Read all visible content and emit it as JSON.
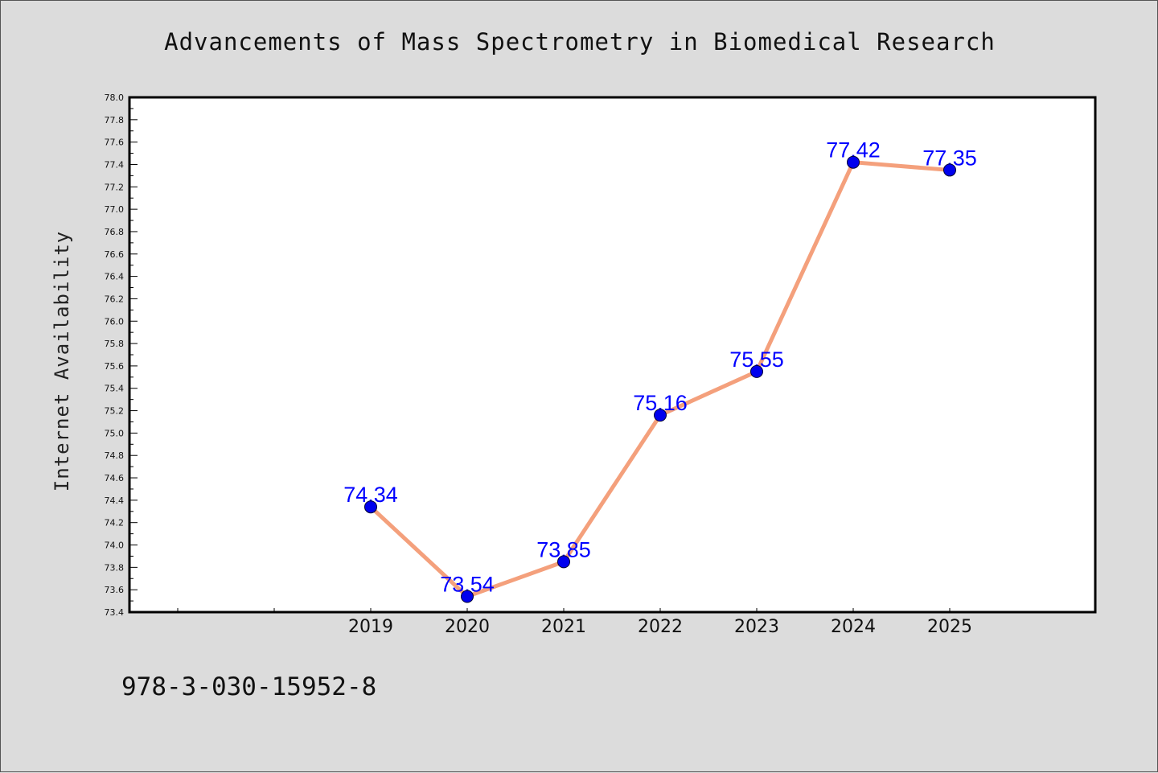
{
  "title": "Advancements of Mass Spectrometry in Biomedical Research",
  "footnote": "978-3-030-15952-8",
  "colors": {
    "background": "#dcdcdc",
    "plot_background": "#ffffff",
    "line": "#f4a07c",
    "marker": "#0000ee",
    "data_label": "#0000ff"
  },
  "chart_data": {
    "type": "line",
    "title": "Advancements of Mass Spectrometry in Biomedical Research",
    "xlabel": "",
    "ylabel": "Internet Availability",
    "categories": [
      "",
      "",
      "",
      "2019",
      "2020",
      "2021",
      "2022",
      "2023",
      "2024",
      "2025"
    ],
    "series": [
      {
        "values": [
          null,
          null,
          null,
          74.34,
          73.54,
          73.85,
          75.16,
          75.55,
          77.42,
          77.35
        ],
        "labels": [
          "",
          "",
          "",
          "74.34",
          "73.54",
          "73.85",
          "75.16",
          "75.55",
          "77.42",
          "77.35"
        ]
      }
    ],
    "ylim": [
      73.4,
      78.0
    ],
    "yticks": [
      "73.4",
      "73.6",
      "73.8",
      "74.0",
      "74.2",
      "74.4",
      "74.6",
      "74.8",
      "75.0",
      "75.2",
      "75.4",
      "75.6",
      "75.8",
      "76.0",
      "76.2",
      "76.4",
      "76.6",
      "76.8",
      "77.0",
      "77.2",
      "77.4",
      "77.6",
      "77.8",
      "78.0"
    ],
    "grid": false,
    "legend": "none"
  }
}
